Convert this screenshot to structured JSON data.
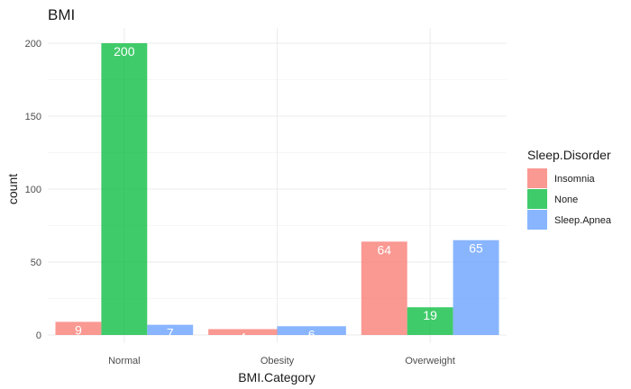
{
  "chart_data": {
    "type": "bar",
    "title": "BMI",
    "xlabel": "BMI.Category",
    "ylabel": "count",
    "categories": [
      "Normal",
      "Obesity",
      "Overweight"
    ],
    "series": [
      {
        "name": "Insomnia",
        "values": [
          9,
          4,
          64
        ],
        "color": "#F8766D"
      },
      {
        "name": "None",
        "values": [
          200,
          null,
          19
        ],
        "color": "#00BA38"
      },
      {
        "name": "Sleep.Apnea",
        "values": [
          7,
          6,
          65
        ],
        "color": "#619CFF"
      }
    ],
    "ylim": [
      0,
      210
    ],
    "yticks": [
      0,
      50,
      100,
      150,
      200
    ],
    "legend": {
      "title": "Sleep.Disorder",
      "position": "right"
    },
    "grid": true
  }
}
